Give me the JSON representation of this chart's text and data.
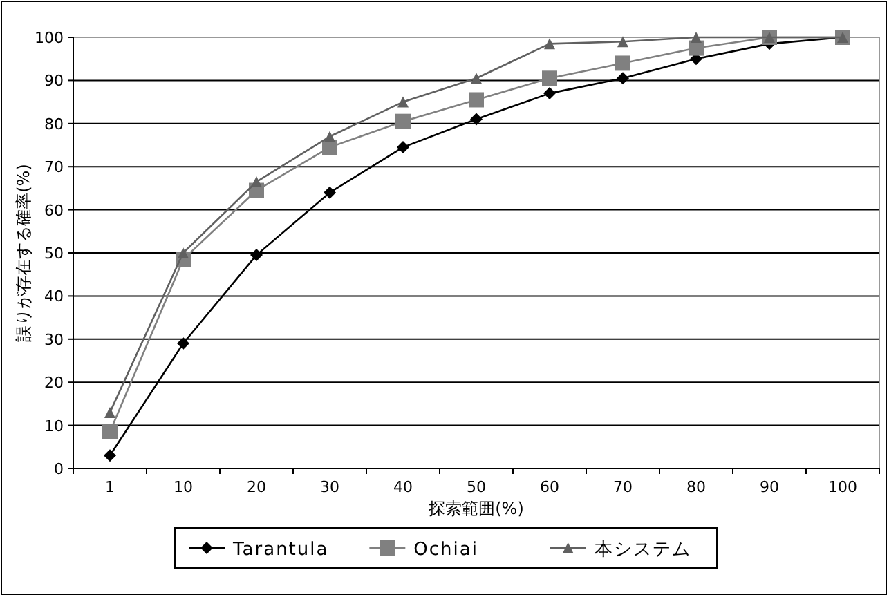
{
  "chart_data": {
    "type": "line",
    "xlabel": "探索範囲(%)",
    "ylabel": "誤りが存在する確率(%)",
    "categories": [
      "1",
      "10",
      "20",
      "30",
      "40",
      "50",
      "60",
      "70",
      "80",
      "90",
      "100"
    ],
    "series": [
      {
        "name": "Tarantula",
        "color": "#000000",
        "marker": "diamond",
        "values": [
          3,
          29,
          49.5,
          64,
          74.5,
          81,
          87,
          90.5,
          95,
          98.5,
          100
        ]
      },
      {
        "name": "Ochiai",
        "color": "#808080",
        "marker": "square",
        "values": [
          8.5,
          48.5,
          64.5,
          74.5,
          80.5,
          85.5,
          90.5,
          94,
          97.5,
          100,
          100
        ]
      },
      {
        "name": "本システム",
        "color": "#606060",
        "marker": "triangle",
        "values": [
          13,
          50,
          66.5,
          77,
          85,
          90.5,
          98.5,
          99,
          100,
          100,
          100
        ]
      }
    ],
    "ylim": [
      0,
      100
    ],
    "yticks": [
      0,
      10,
      20,
      30,
      40,
      50,
      60,
      70,
      80,
      90,
      100
    ],
    "grid": "y",
    "legend": "bottom"
  }
}
